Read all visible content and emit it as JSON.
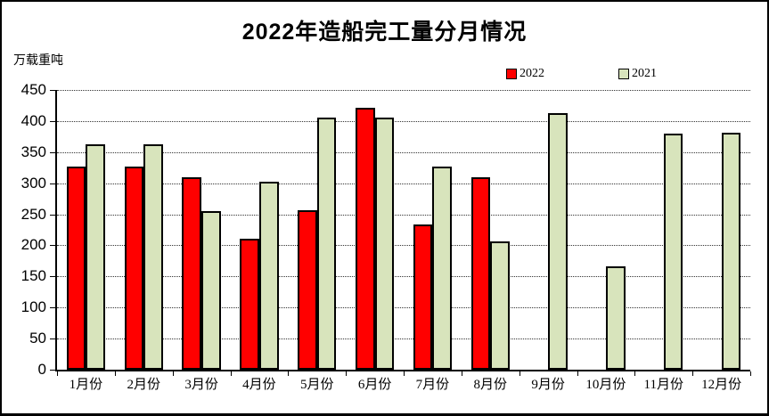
{
  "title": "2022年造船完工量分月情况",
  "y_unit_label": "万载重吨",
  "legend": {
    "items": [
      {
        "label": "2022",
        "color": "#FF0000"
      },
      {
        "label": "2021",
        "color": "#D8E4BC"
      }
    ]
  },
  "chart_data": {
    "type": "bar",
    "title": "2022年造船完工量分月情况",
    "ylabel": "万载重吨",
    "categories": [
      "1月份",
      "2月份",
      "3月份",
      "4月份",
      "5月份",
      "6月份",
      "7月份",
      "8月份",
      "9月份",
      "10月份",
      "11月份",
      "12月份"
    ],
    "series": [
      {
        "name": "2022",
        "color": "#FF0000",
        "values": [
          327,
          327,
          309,
          210,
          256,
          422,
          234,
          309,
          null,
          null,
          null,
          null
        ]
      },
      {
        "name": "2021",
        "color": "#D8E4BC",
        "values": [
          362,
          362,
          255,
          302,
          405,
          405,
          327,
          207,
          413,
          166,
          380,
          381
        ]
      }
    ],
    "ylim": [
      0,
      450
    ],
    "ytick_step": 50,
    "grid": "horizontal-dotted",
    "legend_position": "top-right",
    "bar_outline_color": "#000000"
  }
}
